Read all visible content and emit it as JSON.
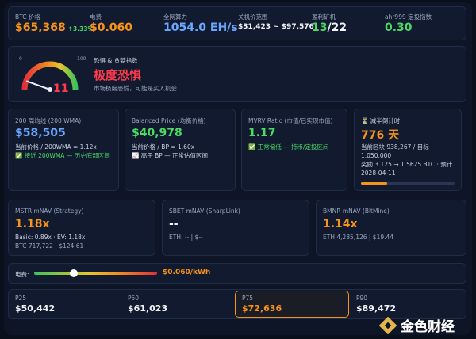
{
  "stats": [
    {
      "label": "BTC 价格",
      "value": "$65,368",
      "change": "↑3.33%"
    },
    {
      "label": "电费",
      "value": "$0.060"
    },
    {
      "label": "全网算力",
      "value": "1054.0 EH/s"
    },
    {
      "label": "关机价范围",
      "value": "$31,423 ~ $97,576"
    },
    {
      "label": "盈利矿机",
      "value": "13",
      "total": "/22"
    },
    {
      "label": "ahr999 定投指数",
      "value": "0.30"
    }
  ],
  "fear_greed": {
    "min": 0,
    "max": 100,
    "value": 11,
    "title": "恐惧 & 贪婪指数",
    "status": "极度恐惧",
    "note": "市场极度恐慌，可能是买入机会"
  },
  "metrics": [
    {
      "title": "200 周均线 (200 WMA)",
      "value": "$58,505",
      "ratio": "当前价格 / 200WMA = 1.12x",
      "status": "✅ 接近 200WMA — 历史底部区间"
    },
    {
      "title": "Balanced Price (均衡价格)",
      "value": "$40,978",
      "ratio": "当前价格 / BP = 1.60x",
      "status": "📈 高于 BP — 正常估值区间"
    },
    {
      "title": "MVRV Ratio (市值/已实现市值)",
      "value": "1.17",
      "status": "✅ 正常偏低 — 持币/定投区间"
    }
  ],
  "halving": {
    "title": "⏳ 减半倒计时",
    "value": "776 天",
    "block": "当前区块 938,267 / 目标 1,050,000",
    "reward": "奖励 3.125 → 1.5625 BTC · 预计 2028-04-11"
  },
  "mnav": [
    {
      "title": "MSTR mNAV (Strategy)",
      "value": "1.18x",
      "detail": "Basic: 0.89x · EV: 1.18x",
      "holding": "BTC 717,722 | $124.61"
    },
    {
      "title": "SBET mNAV (SharpLink)",
      "value": "--",
      "holding": "ETH: -- | $--"
    },
    {
      "title": "BMNR mNAV (BitMine)",
      "value": "1.14x",
      "holding": "ETH 4,285,126 | $19.44"
    }
  ],
  "electricity": {
    "label": "电费:",
    "value": "$0.060/kWh"
  },
  "percentiles": [
    {
      "label": "P25",
      "value": "$50,442"
    },
    {
      "label": "P50",
      "value": "$61,023"
    },
    {
      "label": "P75",
      "value": "$72,636"
    },
    {
      "label": "P90",
      "value": "$89,472"
    }
  ],
  "watermark": "金色财经"
}
